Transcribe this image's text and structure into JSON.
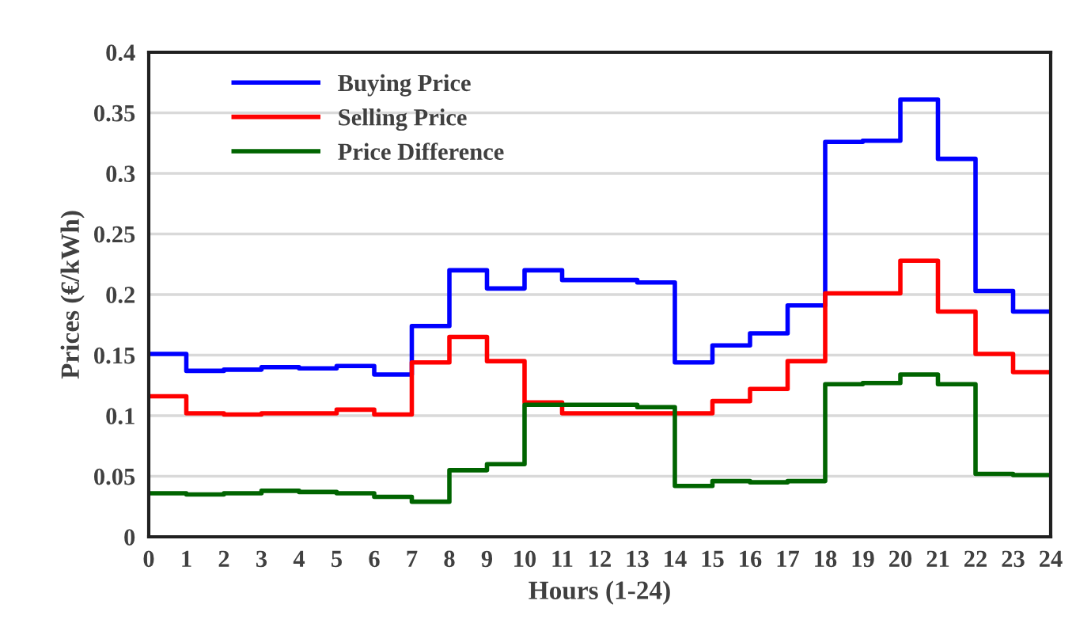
{
  "chart_data": {
    "type": "step",
    "xlabel": "Hours (1-24)",
    "ylabel": "Prices (€/kWh)",
    "x": [
      0,
      1,
      2,
      3,
      4,
      5,
      6,
      7,
      8,
      9,
      10,
      11,
      12,
      13,
      14,
      15,
      16,
      17,
      18,
      19,
      20,
      21,
      22,
      23,
      24
    ],
    "xlim": [
      0,
      24
    ],
    "xticks": [
      0,
      1,
      2,
      3,
      4,
      5,
      6,
      7,
      8,
      9,
      10,
      11,
      12,
      13,
      14,
      15,
      16,
      17,
      18,
      19,
      20,
      21,
      22,
      23,
      24
    ],
    "ylim": [
      0,
      0.4
    ],
    "yticks": [
      0,
      0.05,
      0.1,
      0.15,
      0.2,
      0.25,
      0.3,
      0.35,
      0.4
    ],
    "grid": "y",
    "legend": "top left",
    "line_style": "solid",
    "marker": "none",
    "series": [
      {
        "name": "Buying Price",
        "color": "#0000ff",
        "values": [
          0.151,
          0.137,
          0.138,
          0.14,
          0.139,
          0.141,
          0.134,
          0.174,
          0.22,
          0.205,
          0.22,
          0.212,
          0.212,
          0.21,
          0.144,
          0.158,
          0.168,
          0.191,
          0.326,
          0.327,
          0.361,
          0.312,
          0.203,
          0.186,
          0.186
        ]
      },
      {
        "name": "Selling Price",
        "color": "#ff0000",
        "values": [
          0.116,
          0.102,
          0.101,
          0.102,
          0.102,
          0.105,
          0.101,
          0.144,
          0.165,
          0.145,
          0.111,
          0.102,
          0.102,
          0.102,
          0.102,
          0.112,
          0.122,
          0.145,
          0.201,
          0.201,
          0.228,
          0.186,
          0.151,
          0.136,
          0.136
        ]
      },
      {
        "name": "Price Difference",
        "color": "#006400",
        "values": [
          0.036,
          0.035,
          0.036,
          0.038,
          0.037,
          0.036,
          0.033,
          0.029,
          0.055,
          0.06,
          0.109,
          0.109,
          0.109,
          0.107,
          0.042,
          0.046,
          0.045,
          0.046,
          0.126,
          0.127,
          0.134,
          0.126,
          0.052,
          0.051,
          0.051
        ]
      }
    ]
  }
}
